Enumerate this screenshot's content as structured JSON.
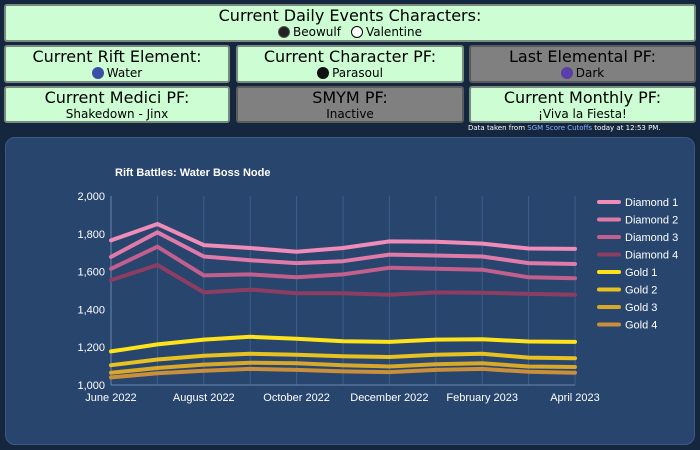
{
  "daily": {
    "title": "Current Daily Events Characters:",
    "chars": [
      "Beowulf",
      "Valentine"
    ]
  },
  "rift": {
    "title": "Current Rift Element:",
    "value": "Water",
    "icon": "water-drop-icon"
  },
  "charpf": {
    "title": "Current Character PF:",
    "value": "Parasoul",
    "icon": "parasoul-icon"
  },
  "elempf": {
    "title": "Last Elemental PF:",
    "value": "Dark",
    "icon": "moon-icon"
  },
  "medici": {
    "title": "Current Medici PF:",
    "value": "Shakedown - Jinx"
  },
  "smym": {
    "title": "SMYM PF:",
    "value": "Inactive"
  },
  "monthly": {
    "title": "Current Monthly PF:",
    "value": "¡Viva la Fiesta!"
  },
  "credit": {
    "prefix": "Data taken from ",
    "link": "SGM Score Cutoffs",
    "suffix": " today at 12:53 PM."
  },
  "colors": {
    "green_box": "#ccfdd3",
    "inactive_box": "#808080",
    "panel": "#28456e",
    "background": "#15263f"
  },
  "chart_data": {
    "type": "line",
    "title": "Rift Battles: Water Boss Node",
    "xlabel": "",
    "ylabel": "",
    "ylim": [
      1000,
      2000
    ],
    "yticks": [
      1000,
      1200,
      1400,
      1600,
      1800,
      2000
    ],
    "ytick_labels": [
      "1,000",
      "1,200",
      "1,400",
      "1,600",
      "1,800",
      "2,000"
    ],
    "x": [
      "2022-06",
      "2022-07",
      "2022-08",
      "2022-09",
      "2022-10",
      "2022-11",
      "2022-12",
      "2023-01",
      "2023-02",
      "2023-03",
      "2023-04"
    ],
    "xtick_labels": [
      "June 2022",
      "August 2022",
      "October 2022",
      "December 2022",
      "February 2023",
      "April 2023"
    ],
    "legend_position": "right",
    "grid": "vertical",
    "series": [
      {
        "name": "Diamond 1",
        "color": "#f08cb8",
        "values": [
          1765,
          1852,
          1740,
          1725,
          1705,
          1725,
          1760,
          1758,
          1748,
          1722,
          1720
        ]
      },
      {
        "name": "Diamond 2",
        "color": "#e07aa8",
        "values": [
          1678,
          1808,
          1680,
          1660,
          1645,
          1655,
          1690,
          1685,
          1680,
          1645,
          1640
        ]
      },
      {
        "name": "Diamond 3",
        "color": "#c25f8d",
        "values": [
          1615,
          1732,
          1580,
          1585,
          1570,
          1585,
          1620,
          1615,
          1610,
          1570,
          1565
        ]
      },
      {
        "name": "Diamond 4",
        "color": "#8e3d62",
        "values": [
          1555,
          1635,
          1490,
          1505,
          1485,
          1485,
          1478,
          1490,
          1488,
          1482,
          1478
        ]
      },
      {
        "name": "Gold 1",
        "color": "#ffe31a",
        "values": [
          1178,
          1215,
          1240,
          1255,
          1245,
          1232,
          1228,
          1240,
          1242,
          1230,
          1228
        ]
      },
      {
        "name": "Gold 2",
        "color": "#e8c220",
        "values": [
          1105,
          1135,
          1155,
          1165,
          1160,
          1152,
          1148,
          1160,
          1165,
          1145,
          1142
        ]
      },
      {
        "name": "Gold 3",
        "color": "#d7a82a",
        "values": [
          1065,
          1090,
          1108,
          1118,
          1115,
          1105,
          1098,
          1110,
          1115,
          1098,
          1095
        ]
      },
      {
        "name": "Gold 4",
        "color": "#c98f3a",
        "values": [
          1040,
          1062,
          1075,
          1085,
          1080,
          1072,
          1068,
          1080,
          1085,
          1070,
          1065
        ]
      }
    ]
  }
}
